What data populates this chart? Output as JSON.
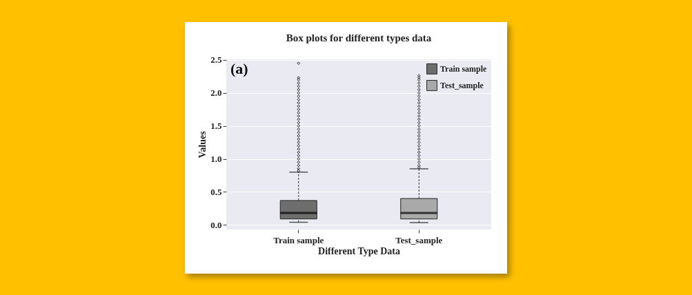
{
  "chart_data": {
    "type": "box",
    "title": "Box plots for different types data",
    "xlabel": "Different Type Data",
    "ylabel": "Values",
    "annotations": [
      "(a)"
    ],
    "categories": [
      "Train sample",
      "Test_sample"
    ],
    "series": [
      {
        "name": "Train sample",
        "color": "#6e6e6e",
        "boxes": [
          {
            "low": 0.04,
            "q1": 0.09,
            "median": 0.18,
            "q3": 0.37,
            "high": 0.8,
            "outliers": [
              0.82,
              0.85,
              0.9,
              0.95,
              1.0,
              1.05,
              1.1,
              1.15,
              1.2,
              1.25,
              1.3,
              1.35,
              1.4,
              1.45,
              1.5,
              1.55,
              1.6,
              1.65,
              1.7,
              1.75,
              1.8,
              1.85,
              1.9,
              1.95,
              2.0,
              2.05,
              2.1,
              2.15,
              2.2,
              2.23,
              2.45
            ]
          },
          null
        ]
      },
      {
        "name": "Test_sample",
        "color": "#a9a9a9",
        "boxes": [
          null,
          {
            "low": 0.035,
            "q1": 0.09,
            "median": 0.18,
            "q3": 0.4,
            "high": 0.85,
            "outliers": [
              0.87,
              0.9,
              0.95,
              1.0,
              1.05,
              1.1,
              1.15,
              1.2,
              1.25,
              1.3,
              1.35,
              1.4,
              1.45,
              1.5,
              1.55,
              1.6,
              1.65,
              1.7,
              1.75,
              1.8,
              1.85,
              1.9,
              1.95,
              2.0,
              2.05,
              2.1,
              2.15,
              2.2,
              2.23,
              2.26
            ]
          }
        ]
      }
    ],
    "ylim": [
      -0.07,
      2.51
    ],
    "yticks": [
      {
        "value": 0,
        "label": "0.0"
      },
      0.5,
      {
        "value": 1,
        "label": "1.0"
      },
      1.5,
      {
        "value": 2,
        "label": "2.0"
      },
      2.5
    ],
    "grid": "y",
    "legend": "top right",
    "marker": "diamond"
  }
}
